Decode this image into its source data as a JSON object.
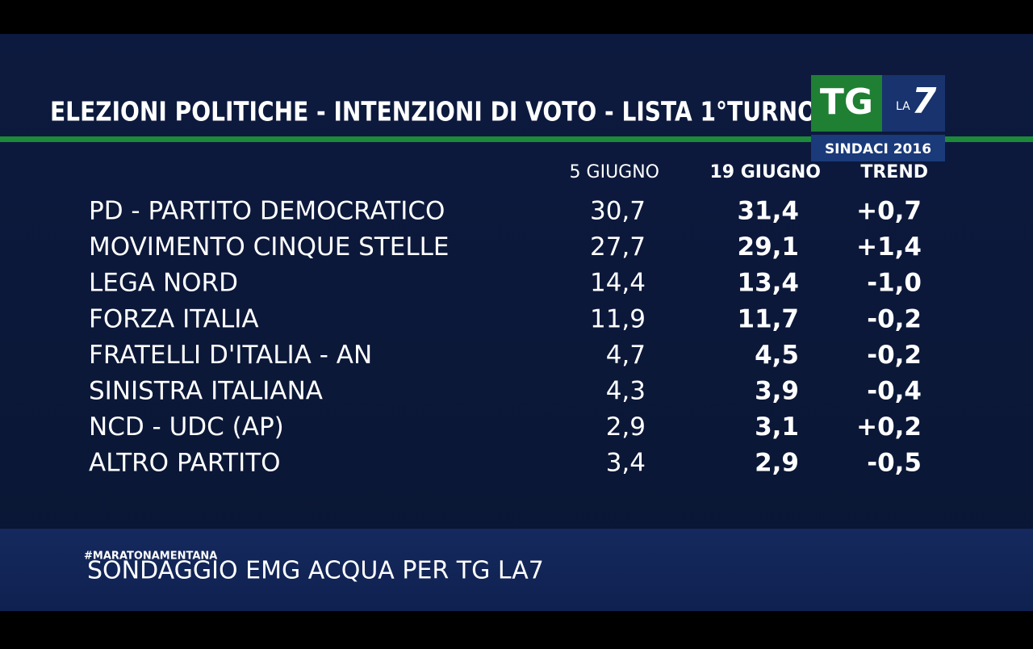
{
  "header": {
    "title": "ELEZIONI POLITICHE - INTENZIONI DI VOTO - LISTA 1°TURNO"
  },
  "logo": {
    "tg": "TG",
    "la": "LA",
    "seven": "7",
    "badge": "SINDACI 2016"
  },
  "table": {
    "columns": [
      "5 GIUGNO",
      "19 GIUGNO",
      "TREND"
    ],
    "rows": [
      [
        "PD - PARTITO DEMOCRATICO",
        "30,7",
        "31,4",
        "+0,7"
      ],
      [
        "MOVIMENTO CINQUE STELLE",
        "27,7",
        "29,1",
        "+1,4"
      ],
      [
        "LEGA NORD",
        "14,4",
        "13,4",
        "-1,0"
      ],
      [
        "FORZA ITALIA",
        "11,9",
        "11,7",
        "-0,2"
      ],
      [
        "FRATELLI D'ITALIA - AN",
        "4,7",
        "4,5",
        "-0,2"
      ],
      [
        "SINISTRA ITALIANA",
        "4,3",
        "3,9",
        "-0,4"
      ],
      [
        "NCD - UDC (AP)",
        "2,9",
        "3,1",
        "+0,2"
      ],
      [
        "ALTRO PARTITO",
        "3,4",
        "2,9",
        "-0,5"
      ]
    ]
  },
  "footer": {
    "hashtag": "#MARATONAMENTANA",
    "source": "SONDAGGIO EMG ACQUA PER TG LA7"
  }
}
